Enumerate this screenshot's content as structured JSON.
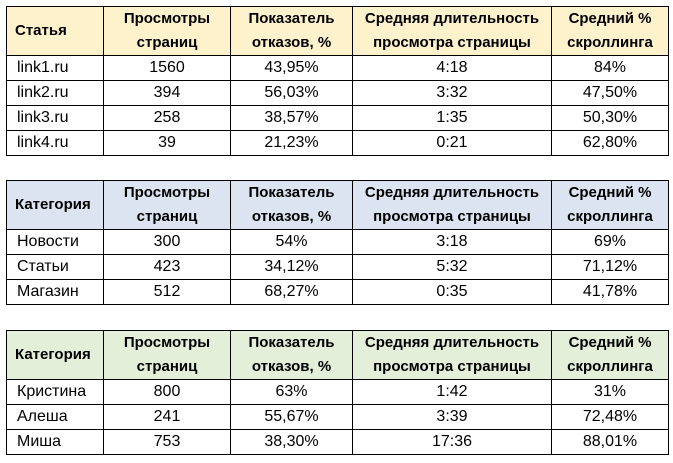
{
  "tables": [
    {
      "headers": [
        "Статья",
        "Просмотры страниц",
        "Показатель отказов, %",
        "Средняя длительность просмотра страницы",
        "Средний % скроллинга"
      ],
      "header_lines": [
        [
          "Статья"
        ],
        [
          "Просмотры",
          "страниц"
        ],
        [
          "Показатель",
          "отказов, %"
        ],
        [
          "Средняя длительность",
          "просмотра страницы"
        ],
        [
          "Средний %",
          "скроллинга"
        ]
      ],
      "header_color": "#fdf2cc",
      "rows": [
        [
          "link1.ru",
          "1560",
          "43,95%",
          "4:18",
          "84%"
        ],
        [
          "link2.ru",
          "394",
          "56,03%",
          "3:32",
          "47,50%"
        ],
        [
          "link3.ru",
          "258",
          "38,57%",
          "1:35",
          "50,30%"
        ],
        [
          "link4.ru",
          "39",
          "21,23%",
          "0:21",
          "62,80%"
        ]
      ]
    },
    {
      "header_lines": [
        [
          "Категория"
        ],
        [
          "Просмотры",
          "страниц"
        ],
        [
          "Показатель",
          "отказов, %"
        ],
        [
          "Средняя длительность",
          "просмотра страницы"
        ],
        [
          "Средний %",
          "скроллинга"
        ]
      ],
      "header_color": "#dce4f2",
      "rows": [
        [
          "Новости",
          "300",
          "54%",
          "3:18",
          "69%"
        ],
        [
          "Статьи",
          "423",
          "34,12%",
          "5:32",
          "71,12%"
        ],
        [
          "Магазин",
          "512",
          "68,27%",
          "0:35",
          "41,78%"
        ]
      ]
    },
    {
      "header_lines": [
        [
          "Категория"
        ],
        [
          "Просмотры",
          "страниц"
        ],
        [
          "Показатель",
          "отказов, %"
        ],
        [
          "Средняя длительность",
          "просмотра страницы"
        ],
        [
          "Средний %",
          "скроллинга"
        ]
      ],
      "header_color": "#e3efd9",
      "rows": [
        [
          "Кристина",
          "800",
          "63%",
          "1:42",
          "31%"
        ],
        [
          "Алеша",
          "241",
          "55,67%",
          "3:39",
          "72,48%"
        ],
        [
          "Миша",
          "753",
          "38,30%",
          "17:36",
          "88,01%"
        ]
      ]
    }
  ]
}
